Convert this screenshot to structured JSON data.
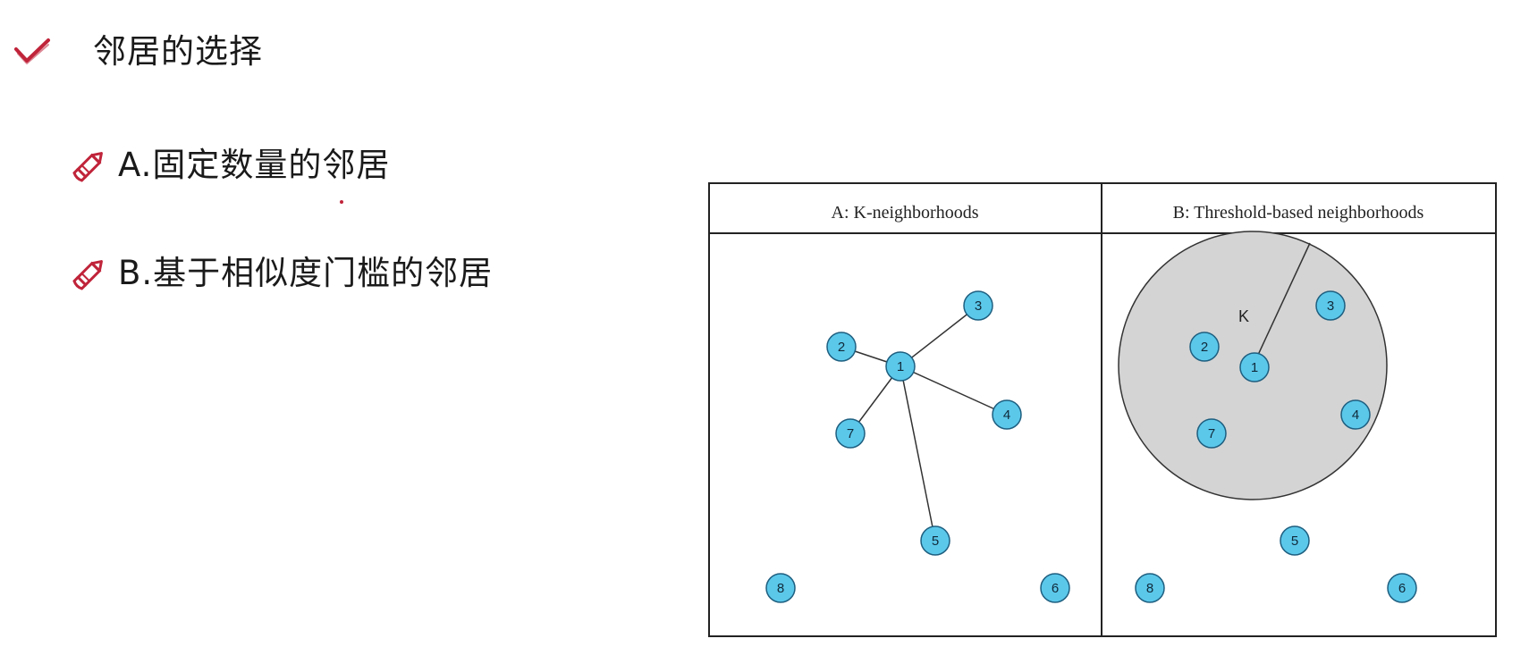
{
  "heading": {
    "text": "邻居的选择",
    "icon": "check-icon"
  },
  "bullets": [
    {
      "text": "A.固定数量的邻居",
      "icon": "pencil-icon"
    },
    {
      "text": "B.基于相似度门槛的邻居",
      "icon": "pencil-icon"
    }
  ],
  "diagram": {
    "panels": [
      {
        "title": "A: K-neighborhoods",
        "nodes": [
          "1",
          "2",
          "3",
          "4",
          "5",
          "6",
          "7",
          "8"
        ],
        "edges": [
          [
            "1",
            "2"
          ],
          [
            "1",
            "3"
          ],
          [
            "1",
            "4"
          ],
          [
            "1",
            "5"
          ],
          [
            "1",
            "7"
          ]
        ]
      },
      {
        "title": "B: Threshold-based neighborhoods",
        "nodes": [
          "1",
          "2",
          "3",
          "4",
          "5",
          "6",
          "7",
          "8"
        ],
        "radius_label": "K"
      }
    ]
  },
  "colors": {
    "accent": "#c0243a",
    "node_fill": "#5bc8ea",
    "node_stroke": "#1e5f80",
    "threshold_fill": "#d4d4d4"
  }
}
